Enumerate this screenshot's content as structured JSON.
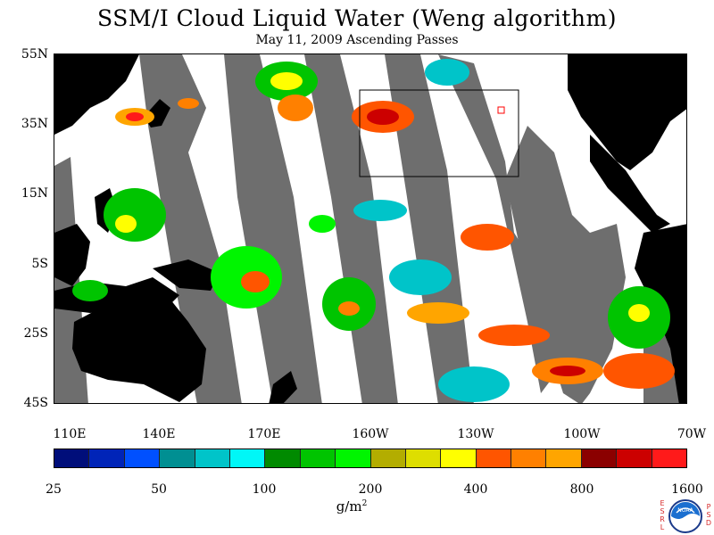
{
  "title": "SSM/I Cloud Liquid Water (Weng algorithm)",
  "subtitle": "May 11, 2009  Ascending Passes",
  "lat_labels": [
    "55N",
    "35N",
    "15N",
    "5S",
    "25S",
    "45S"
  ],
  "lon_labels": [
    "110E",
    "140E",
    "170E",
    "160W",
    "130W",
    "100W",
    "70W"
  ],
  "colorbar": {
    "unit": "g/m",
    "unit_exp": "2",
    "tick_labels": [
      "25",
      "50",
      "100",
      "200",
      "400",
      "800",
      "1600"
    ],
    "colors": [
      "#000e7a",
      "#0024b8",
      "#0050ff",
      "#008f92",
      "#00c4c9",
      "#00f7f7",
      "#008a00",
      "#00c400",
      "#00f500",
      "#b3ad00",
      "#dede00",
      "#ffff00",
      "#ff5500",
      "#ff8000",
      "#ffa500",
      "#8b0000",
      "#cc0000",
      "#ff1a1a"
    ]
  },
  "map": {
    "land_color": "#000000",
    "missing_data_color": "#6e6e6e",
    "no_cloud_color": "#ffffff"
  },
  "logo": {
    "left_text": "ESRL",
    "right_text": "PSD",
    "center_text": "NOAA"
  }
}
